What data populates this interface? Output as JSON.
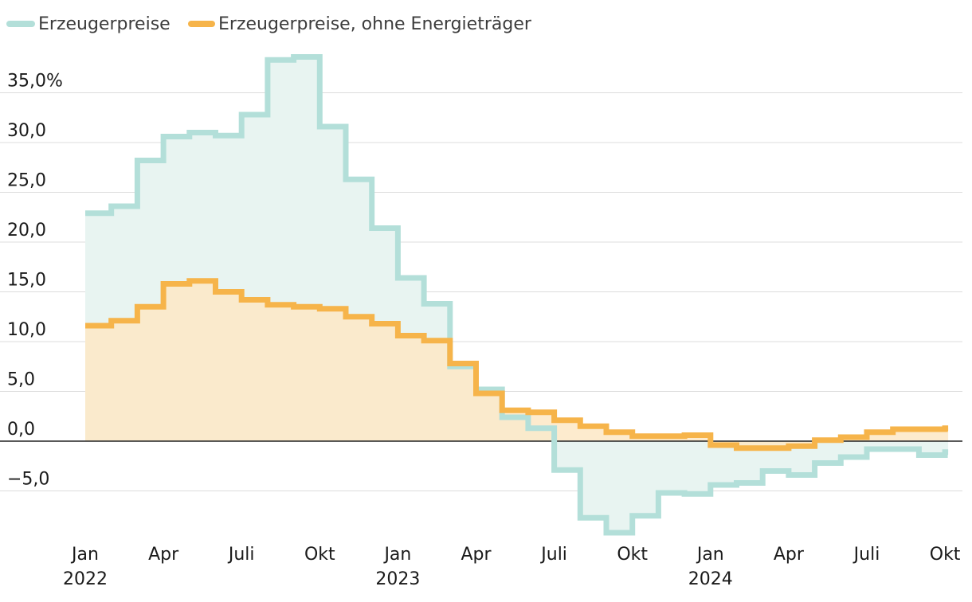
{
  "chart_data": {
    "type": "line",
    "title": "",
    "xlabel": "",
    "ylabel": "",
    "ylim": [
      -9.5,
      39
    ],
    "y_ticks": [
      {
        "value": -5,
        "label": "−5,0"
      },
      {
        "value": 0,
        "label": "0,0"
      },
      {
        "value": 5,
        "label": "5,0"
      },
      {
        "value": 10,
        "label": "10,0"
      },
      {
        "value": 15,
        "label": "15,0"
      },
      {
        "value": 20,
        "label": "20,0"
      },
      {
        "value": 25,
        "label": "25,0"
      },
      {
        "value": 30,
        "label": "30,0"
      },
      {
        "value": 35,
        "label": "35,0%"
      }
    ],
    "x_ticks": [
      {
        "index": 0,
        "label": "Jan",
        "year": "2022"
      },
      {
        "index": 3,
        "label": "Apr",
        "year": ""
      },
      {
        "index": 6,
        "label": "Juli",
        "year": ""
      },
      {
        "index": 9,
        "label": "Okt",
        "year": ""
      },
      {
        "index": 12,
        "label": "Jan",
        "year": "2023"
      },
      {
        "index": 15,
        "label": "Apr",
        "year": ""
      },
      {
        "index": 18,
        "label": "Juli",
        "year": ""
      },
      {
        "index": 21,
        "label": "Okt",
        "year": ""
      },
      {
        "index": 24,
        "label": "Jan",
        "year": "2024"
      },
      {
        "index": 27,
        "label": "Apr",
        "year": ""
      },
      {
        "index": 30,
        "label": "Juli",
        "year": ""
      },
      {
        "index": 33,
        "label": "Okt",
        "year": ""
      }
    ],
    "categories": [
      "2022-01",
      "2022-02",
      "2022-03",
      "2022-04",
      "2022-05",
      "2022-06",
      "2022-07",
      "2022-08",
      "2022-09",
      "2022-10",
      "2022-11",
      "2022-12",
      "2023-01",
      "2023-02",
      "2023-03",
      "2023-04",
      "2023-05",
      "2023-06",
      "2023-07",
      "2023-08",
      "2023-09",
      "2023-10",
      "2023-11",
      "2023-12",
      "2024-01",
      "2024-02",
      "2024-03",
      "2024-04",
      "2024-05",
      "2024-06",
      "2024-07",
      "2024-08",
      "2024-09",
      "2024-10"
    ],
    "series": [
      {
        "name": "Erzeugerpreise",
        "color": "#b3dfd9",
        "fill": "#e8f4f1",
        "values": [
          22.9,
          23.6,
          28.2,
          30.6,
          31.0,
          30.7,
          32.8,
          38.3,
          38.6,
          31.6,
          26.3,
          21.4,
          16.4,
          13.8,
          7.5,
          5.2,
          2.4,
          1.3,
          -2.9,
          -7.7,
          -9.2,
          -7.5,
          -5.2,
          -5.3,
          -4.4,
          -4.2,
          -3.0,
          -3.4,
          -2.2,
          -1.6,
          -0.8,
          -0.8,
          -1.4,
          -1.1
        ]
      },
      {
        "name": "Erzeugerpreise, ohne Energieträger",
        "color": "#f6b44a",
        "fill": "#fde7c6",
        "values": [
          11.6,
          12.1,
          13.5,
          15.8,
          16.1,
          15.0,
          14.2,
          13.7,
          13.5,
          13.3,
          12.5,
          11.8,
          10.6,
          10.1,
          7.8,
          4.8,
          3.1,
          2.9,
          2.1,
          1.5,
          0.9,
          0.5,
          0.5,
          0.6,
          -0.4,
          -0.7,
          -0.7,
          -0.5,
          0.1,
          0.4,
          0.9,
          1.2,
          1.2,
          1.3
        ]
      }
    ],
    "legend_position": "top-left",
    "grid": true
  }
}
